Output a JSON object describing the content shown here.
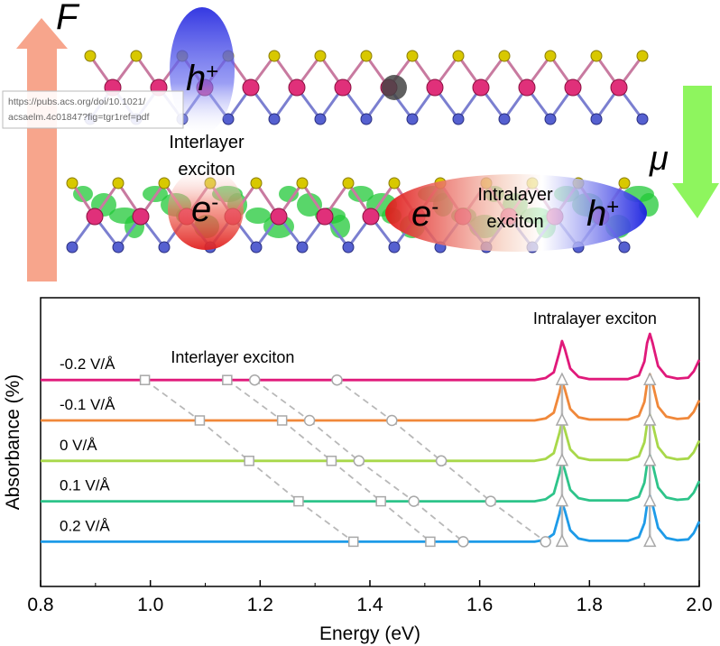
{
  "illustration": {
    "url": "https://pubs.acs.org/doi/10.1021/acsaelm.4c01847?fig=tgr1ref=pdf",
    "field": "F",
    "mu": "μ",
    "hole_left": {
      "base": "h",
      "sup": "+"
    },
    "electron_left": {
      "base": "e",
      "sup": "-"
    },
    "interlayer_label": [
      "Interlayer",
      "exciton"
    ],
    "electron_right": {
      "base": "e",
      "sup": "-"
    },
    "intralayer_label": [
      "Intralayer",
      "exciton"
    ],
    "hole_right": {
      "base": "h",
      "sup": "+"
    }
  },
  "chart_data": {
    "type": "line",
    "xlabel": "Energy (eV)",
    "ylabel": "Absorbance (%)",
    "annotations": [
      {
        "text": "Interlayer exciton",
        "x": 1.15,
        "y": 7.75
      },
      {
        "text": "Intralayer exciton",
        "x": 1.81,
        "y": 9.1
      }
    ],
    "xlim": [
      0.8,
      2.0
    ],
    "xticks": [
      0.8,
      {
        "value": 1.0,
        "label": "1.0"
      },
      1.2,
      1.4,
      1.6,
      1.8,
      {
        "value": 2.0,
        "label": "2.0"
      }
    ],
    "ylim": [
      0,
      10
    ],
    "x": [
      0.8,
      1.7,
      1.72,
      1.735,
      1.745,
      1.75,
      1.755,
      1.765,
      1.78,
      1.8,
      1.87,
      1.89,
      1.9,
      1.905,
      1.91,
      1.915,
      1.925,
      1.94,
      1.96,
      1.98,
      1.99,
      2.0
    ],
    "series": [
      {
        "name": "-0.2 V/Å",
        "color": "#e0197a",
        "values": [
          7.15,
          7.15,
          7.22,
          7.42,
          8.1,
          8.5,
          8.23,
          7.55,
          7.26,
          7.18,
          7.18,
          7.31,
          7.79,
          8.43,
          8.75,
          8.43,
          7.63,
          7.28,
          7.2,
          7.23,
          7.45,
          7.85
        ],
        "markers": [
          {
            "shape": "square",
            "x": 0.99,
            "y": 7.15
          },
          {
            "shape": "square",
            "x": 1.14,
            "y": 7.15
          },
          {
            "shape": "circle",
            "x": 1.19,
            "y": 7.15
          },
          {
            "shape": "circle",
            "x": 1.34,
            "y": 7.15
          },
          {
            "shape": "triangle",
            "x": 1.75,
            "y": 7.15
          },
          {
            "shape": "triangle",
            "x": 1.91,
            "y": 7.15
          }
        ]
      },
      {
        "name": "-0.1 V/Å",
        "color": "#f0883a",
        "values": [
          5.75,
          5.75,
          5.82,
          6.02,
          6.7,
          7.1,
          6.83,
          6.15,
          5.86,
          5.78,
          5.78,
          5.91,
          6.39,
          7.03,
          7.35,
          7.03,
          6.23,
          5.88,
          5.8,
          5.83,
          6.05,
          6.45
        ],
        "markers": [
          {
            "shape": "square",
            "x": 1.09,
            "y": 5.75
          },
          {
            "shape": "square",
            "x": 1.24,
            "y": 5.75
          },
          {
            "shape": "circle",
            "x": 1.29,
            "y": 5.75
          },
          {
            "shape": "circle",
            "x": 1.44,
            "y": 5.75
          },
          {
            "shape": "triangle",
            "x": 1.75,
            "y": 5.75
          },
          {
            "shape": "triangle",
            "x": 1.91,
            "y": 5.75
          }
        ]
      },
      {
        "name": "0 V/Å",
        "color": "#a8d84a",
        "values": [
          4.35,
          4.35,
          4.42,
          4.62,
          5.3,
          5.7,
          5.43,
          4.75,
          4.46,
          4.38,
          4.38,
          4.51,
          4.99,
          5.63,
          5.95,
          5.63,
          4.83,
          4.48,
          4.4,
          4.43,
          4.65,
          5.05
        ],
        "markers": [
          {
            "shape": "square",
            "x": 1.18,
            "y": 4.35
          },
          {
            "shape": "square",
            "x": 1.33,
            "y": 4.35
          },
          {
            "shape": "circle",
            "x": 1.38,
            "y": 4.35
          },
          {
            "shape": "circle",
            "x": 1.53,
            "y": 4.35
          },
          {
            "shape": "triangle",
            "x": 1.75,
            "y": 4.35
          },
          {
            "shape": "triangle",
            "x": 1.91,
            "y": 4.35
          }
        ]
      },
      {
        "name": "0.1 V/Å",
        "color": "#2ec48a",
        "values": [
          2.95,
          2.95,
          3.02,
          3.22,
          3.9,
          4.3,
          4.03,
          3.35,
          3.06,
          2.98,
          2.98,
          3.11,
          3.59,
          4.23,
          4.55,
          4.23,
          3.43,
          3.08,
          3.0,
          3.03,
          3.25,
          3.65
        ],
        "markers": [
          {
            "shape": "square",
            "x": 1.27,
            "y": 2.95
          },
          {
            "shape": "square",
            "x": 1.42,
            "y": 2.95
          },
          {
            "shape": "circle",
            "x": 1.48,
            "y": 2.95
          },
          {
            "shape": "circle",
            "x": 1.62,
            "y": 2.95
          },
          {
            "shape": "triangle",
            "x": 1.75,
            "y": 2.95
          },
          {
            "shape": "triangle",
            "x": 1.91,
            "y": 2.95
          }
        ]
      },
      {
        "name": "0.2 V/Å",
        "color": "#1e9be8",
        "values": [
          1.55,
          1.55,
          1.62,
          1.82,
          2.5,
          2.9,
          2.63,
          1.95,
          1.66,
          1.58,
          1.58,
          1.71,
          2.19,
          2.83,
          3.15,
          2.83,
          2.03,
          1.68,
          1.6,
          1.63,
          1.85,
          2.25
        ],
        "markers": [
          {
            "shape": "square",
            "x": 1.37,
            "y": 1.55
          },
          {
            "shape": "square",
            "x": 1.51,
            "y": 1.55
          },
          {
            "shape": "circle",
            "x": 1.57,
            "y": 1.55
          },
          {
            "shape": "circle",
            "x": 1.72,
            "y": 1.55
          },
          {
            "shape": "triangle",
            "x": 1.75,
            "y": 1.55
          },
          {
            "shape": "triangle",
            "x": 1.91,
            "y": 1.55
          }
        ]
      }
    ]
  }
}
